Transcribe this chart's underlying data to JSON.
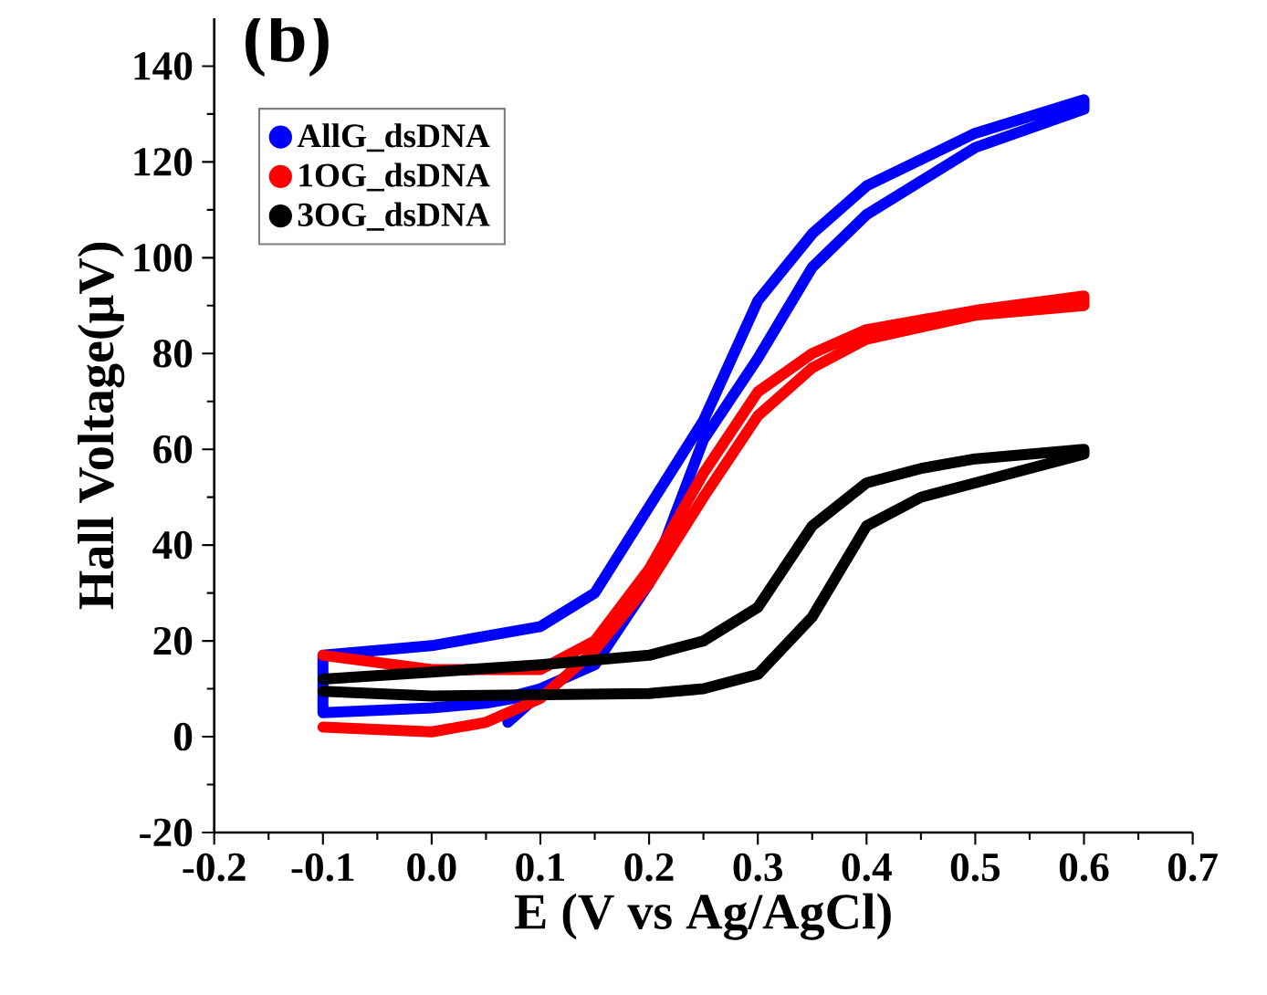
{
  "chart_data": {
    "type": "line",
    "title": "(b)",
    "xlabel": "E (V vs Ag/AgCl)",
    "ylabel": "Hall Voltage(μV)",
    "xlim": [
      -0.2,
      0.7
    ],
    "ylim": [
      -20,
      150
    ],
    "xticks": [
      -0.2,
      -0.1,
      {
        "value": 0,
        "label": "0.0"
      },
      0.1,
      0.2,
      0.3,
      0.4,
      0.5,
      0.6,
      0.7
    ],
    "yticks": [
      -20,
      0,
      20,
      40,
      60,
      80,
      100,
      120,
      140
    ],
    "line_style": "solid",
    "legend": "top left",
    "grid": false,
    "series": [
      {
        "name": "AllG_dsDNA",
        "color": "#0000ff",
        "x": [
          0.07,
          0.1,
          0.05,
          0.0,
          -0.1,
          -0.1,
          0.0,
          0.1,
          0.15,
          0.2,
          0.25,
          0.3,
          0.35,
          0.4,
          0.5,
          0.6,
          0.6,
          0.5,
          0.4,
          0.35,
          0.3,
          0.25,
          0.2,
          0.15,
          0.1,
          0.05,
          0.0,
          -0.1
        ],
        "values": [
          3,
          9,
          7,
          6,
          5,
          17,
          19,
          23,
          30,
          48,
          66,
          91,
          105,
          115,
          126,
          133,
          131,
          123,
          109,
          98,
          79,
          62,
          32,
          15,
          10,
          7,
          6,
          5
        ]
      },
      {
        "name": "1OG_dsDNA",
        "color": "#ff0000",
        "x": [
          -0.1,
          0.0,
          0.05,
          0.1,
          0.15,
          0.2,
          0.25,
          0.3,
          0.35,
          0.4,
          0.5,
          0.6,
          0.6,
          0.5,
          0.4,
          0.35,
          0.3,
          0.25,
          0.2,
          0.15,
          0.1,
          0.0,
          -0.1
        ],
        "values": [
          2,
          1,
          3,
          8,
          18,
          32,
          50,
          67,
          77,
          83,
          88,
          90,
          92,
          89,
          85,
          80,
          72,
          55,
          35,
          20,
          14,
          14,
          17
        ]
      },
      {
        "name": "3OG_dsDNA",
        "color": "#000000",
        "x": [
          -0.1,
          0.0,
          0.1,
          0.2,
          0.25,
          0.3,
          0.35,
          0.4,
          0.45,
          0.5,
          0.6,
          0.6,
          0.5,
          0.45,
          0.4,
          0.35,
          0.3,
          0.25,
          0.2,
          0.0,
          -0.1
        ],
        "values": [
          12,
          13.5,
          15,
          17,
          20,
          27,
          44,
          53,
          56,
          58,
          60,
          59,
          53,
          50,
          44,
          25,
          13,
          10,
          9,
          8.5,
          9.5
        ]
      }
    ]
  }
}
